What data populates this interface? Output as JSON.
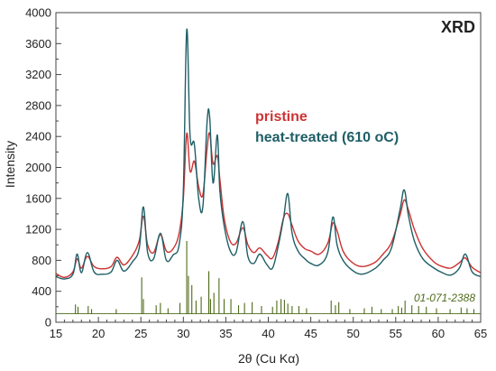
{
  "chart_data": {
    "type": "line",
    "title": "XRD",
    "xlabel": "2θ (Cu Kα)",
    "ylabel": "Intensity",
    "xlim": [
      15,
      65
    ],
    "ylim": [
      0,
      4000
    ],
    "x_ticks": [
      15,
      20,
      25,
      30,
      35,
      40,
      45,
      50,
      55,
      60,
      65
    ],
    "y_ticks": [
      0,
      400,
      800,
      1200,
      1600,
      2000,
      2400,
      2800,
      3200,
      3600,
      4000
    ],
    "legend": {
      "placement": "upper-center-right"
    },
    "colors": {
      "pristine": "#cc3333",
      "heat_treated": "#1f5f66",
      "reference": "#4e6b1a",
      "axis": "#444444"
    },
    "series": [
      {
        "name": "pristine",
        "color": "#cc3333",
        "x": [
          15,
          16,
          17,
          17.5,
          18,
          18.7,
          19.5,
          20.5,
          21.5,
          22.2,
          23,
          24,
          24.8,
          25.3,
          25.8,
          26.5,
          27.3,
          28,
          28.8,
          29.5,
          30.0,
          30.4,
          30.8,
          31.3,
          31.8,
          32.3,
          32.8,
          33.1,
          33.5,
          34.0,
          34.3,
          34.8,
          35.5,
          36.2,
          37.0,
          37.6,
          38.3,
          39.0,
          39.8,
          40.5,
          41.2,
          41.8,
          42.3,
          42.8,
          43.5,
          44.3,
          45.0,
          46.0,
          47.0,
          47.6,
          48.1,
          48.8,
          49.8,
          51,
          52.5,
          53.5,
          54.5,
          55.5,
          56.0,
          56.5,
          57.2,
          58.2,
          59.5,
          60.5,
          61.5,
          62.5,
          63.2,
          64,
          65
        ],
        "values": [
          630,
          580,
          650,
          820,
          700,
          850,
          720,
          690,
          720,
          840,
          740,
          860,
          1050,
          1370,
          1000,
          900,
          1130,
          920,
          950,
          1150,
          1600,
          2440,
          1950,
          2080,
          1750,
          1650,
          2250,
          2440,
          2050,
          2150,
          1850,
          1350,
          1050,
          1020,
          1220,
          1000,
          900,
          960,
          870,
          830,
          1050,
          1350,
          1400,
          1250,
          1050,
          950,
          920,
          880,
          1020,
          1280,
          1180,
          920,
          780,
          720,
          770,
          880,
          1030,
          1380,
          1580,
          1450,
          1200,
          950,
          780,
          720,
          700,
          770,
          830,
          710,
          640
        ]
      },
      {
        "name": "heat-treated (610 oC)",
        "color": "#1f5f66",
        "x": [
          15,
          16,
          17,
          17.5,
          18,
          18.7,
          19.5,
          20.5,
          21.5,
          22.2,
          23,
          24,
          24.8,
          25.3,
          25.8,
          26.5,
          27.3,
          28,
          28.8,
          29.5,
          30.0,
          30.4,
          30.8,
          31.3,
          31.8,
          32.3,
          32.8,
          33.1,
          33.5,
          34.0,
          34.3,
          34.8,
          35.5,
          36.2,
          37.0,
          37.6,
          38.3,
          39.0,
          39.8,
          40.5,
          41.2,
          41.8,
          42.3,
          42.8,
          43.5,
          44.3,
          45.0,
          46.0,
          47.0,
          47.6,
          48.1,
          48.8,
          49.8,
          51,
          52.5,
          53.5,
          54.5,
          55.5,
          56.0,
          56.5,
          57.2,
          58.2,
          59.5,
          60.5,
          61.5,
          62.5,
          63.2,
          64,
          65
        ],
        "values": [
          590,
          560,
          620,
          880,
          640,
          900,
          650,
          620,
          650,
          800,
          660,
          780,
          950,
          1490,
          900,
          820,
          1150,
          800,
          870,
          1000,
          1700,
          3780,
          2400,
          2300,
          1600,
          1500,
          2600,
          2650,
          1800,
          2420,
          1700,
          1250,
          930,
          900,
          1300,
          850,
          760,
          880,
          750,
          700,
          1000,
          1350,
          1660,
          1150,
          920,
          820,
          760,
          740,
          900,
          1360,
          1000,
          800,
          680,
          620,
          690,
          800,
          960,
          1450,
          1710,
          1380,
          1050,
          820,
          700,
          640,
          610,
          700,
          880,
          650,
          590
        ]
      },
      {
        "name": "01-071-2388",
        "color": "#4e6b1a",
        "baseline": 110,
        "x": [
          17.3,
          17.6,
          18.8,
          19.2,
          22.1,
          25.1,
          25.3,
          26.8,
          27.3,
          28.2,
          29.6,
          30.4,
          30.6,
          31.0,
          31.5,
          32.1,
          33.0,
          33.2,
          33.6,
          34.2,
          34.8,
          35.6,
          36.5,
          37.2,
          38.1,
          39.2,
          40.5,
          41.0,
          41.5,
          41.9,
          42.3,
          42.8,
          43.6,
          44.5,
          47.4,
          47.9,
          48.3,
          49.6,
          51.3,
          52.2,
          53.3,
          54.6,
          55.3,
          55.7,
          56.1,
          56.9,
          57.7,
          58.6,
          59.8,
          61.4,
          62.7,
          63.4,
          64.2
        ],
        "values": [
          230,
          200,
          210,
          170,
          170,
          580,
          300,
          220,
          250,
          180,
          250,
          1050,
          600,
          480,
          280,
          330,
          660,
          300,
          380,
          570,
          300,
          300,
          220,
          250,
          260,
          210,
          200,
          280,
          300,
          290,
          240,
          210,
          210,
          180,
          280,
          220,
          260,
          170,
          180,
          200,
          170,
          170,
          210,
          190,
          280,
          220,
          210,
          200,
          180,
          170,
          190,
          180,
          170
        ]
      }
    ]
  }
}
